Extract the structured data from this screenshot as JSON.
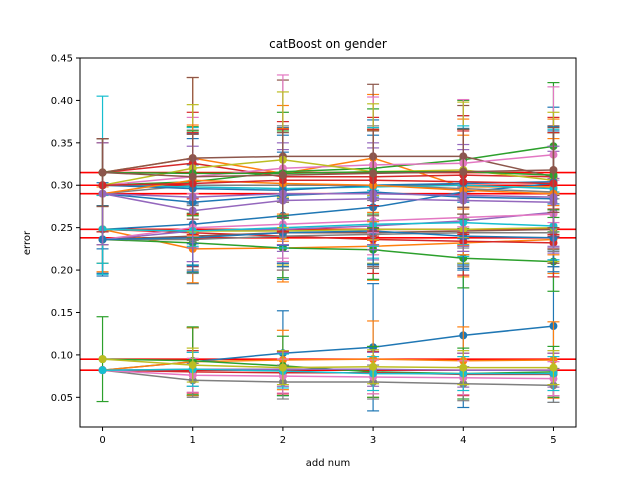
{
  "chart_data": {
    "type": "line",
    "title": "catBoost on gender",
    "xlabel": "add num",
    "ylabel": "error",
    "xlim": [
      -0.25,
      5.25
    ],
    "ylim": [
      0.015,
      0.45
    ],
    "x_ticks": [
      "0",
      "1",
      "2",
      "3",
      "4",
      "5"
    ],
    "y_ticks": [
      "0.05",
      "0.10",
      "0.15",
      "0.20",
      "0.25",
      "0.30",
      "0.35",
      "0.40",
      "0.45"
    ],
    "x": [
      0,
      1,
      2,
      3,
      4,
      5
    ],
    "grid": false,
    "reference_lines": {
      "color": "#ff0000",
      "values": [
        0.315,
        0.3,
        0.29,
        0.248,
        0.238,
        0.095,
        0.082
      ]
    },
    "series": [
      {
        "color": "#1f77b4",
        "values": [
          0.082,
          0.092,
          0.102,
          0.109,
          0.123,
          0.134
        ],
        "err": [
          0.0,
          0.04,
          0.05,
          0.075,
          0.085,
          0.09
        ]
      },
      {
        "color": "#ff7f0e",
        "values": [
          0.082,
          0.092,
          0.094,
          0.095,
          0.093,
          0.094
        ],
        "err": [
          0.0,
          0.04,
          0.035,
          0.045,
          0.04,
          0.045
        ]
      },
      {
        "color": "#2ca02c",
        "values": [
          0.095,
          0.093,
          0.087,
          0.08,
          0.078,
          0.08
        ],
        "err": [
          0.05,
          0.04,
          0.035,
          0.03,
          0.03,
          0.03
        ]
      },
      {
        "color": "#d62728",
        "values": [
          0.082,
          0.08,
          0.079,
          0.079,
          0.077,
          0.077
        ],
        "err": [
          0.0,
          0.025,
          0.025,
          0.025,
          0.025,
          0.025
        ]
      },
      {
        "color": "#9467bd",
        "values": [
          0.082,
          0.083,
          0.083,
          0.083,
          0.082,
          0.082
        ],
        "err": [
          0.0,
          0.02,
          0.02,
          0.02,
          0.02,
          0.02
        ]
      },
      {
        "color": "#7f7f7f",
        "values": [
          0.082,
          0.07,
          0.068,
          0.068,
          0.066,
          0.064
        ],
        "err": [
          0.0,
          0.02,
          0.02,
          0.02,
          0.02,
          0.02
        ]
      },
      {
        "color": "#e377c2",
        "values": [
          0.082,
          0.076,
          0.075,
          0.074,
          0.073,
          0.072
        ],
        "err": [
          0.0,
          0.02,
          0.02,
          0.02,
          0.02,
          0.02
        ]
      },
      {
        "color": "#17becf",
        "values": [
          0.082,
          0.083,
          0.081,
          0.078,
          0.078,
          0.078
        ],
        "err": [
          0.0,
          0.02,
          0.02,
          0.02,
          0.02,
          0.02
        ]
      },
      {
        "color": "#bcbd22",
        "values": [
          0.095,
          0.088,
          0.085,
          0.086,
          0.085,
          0.085
        ],
        "err": [
          0.0,
          0.02,
          0.02,
          0.02,
          0.02,
          0.02
        ]
      },
      {
        "color": "#1f77b4",
        "values": [
          0.248,
          0.254,
          0.264,
          0.274,
          0.292,
          0.302
        ],
        "err": [
          0.055,
          0.07,
          0.075,
          0.085,
          0.09,
          0.09
        ]
      },
      {
        "color": "#ff7f0e",
        "values": [
          0.248,
          0.225,
          0.226,
          0.228,
          0.232,
          0.236
        ],
        "err": [
          0.05,
          0.04,
          0.04,
          0.04,
          0.04,
          0.04
        ]
      },
      {
        "color": "#2ca02c",
        "values": [
          0.236,
          0.232,
          0.226,
          0.224,
          0.214,
          0.21
        ],
        "err": [
          0.04,
          0.035,
          0.035,
          0.035,
          0.035,
          0.035
        ]
      },
      {
        "color": "#d62728",
        "values": [
          0.248,
          0.244,
          0.24,
          0.236,
          0.234,
          0.232
        ],
        "err": [
          0.04,
          0.04,
          0.04,
          0.04,
          0.04,
          0.04
        ]
      },
      {
        "color": "#9467bd",
        "values": [
          0.236,
          0.246,
          0.248,
          0.252,
          0.258,
          0.268
        ],
        "err": [
          0.04,
          0.04,
          0.04,
          0.04,
          0.04,
          0.04
        ]
      },
      {
        "color": "#8c564b",
        "values": [
          0.236,
          0.24,
          0.244,
          0.244,
          0.246,
          0.248
        ],
        "err": [
          0.04,
          0.04,
          0.04,
          0.04,
          0.04,
          0.04
        ]
      },
      {
        "color": "#e377c2",
        "values": [
          0.236,
          0.25,
          0.254,
          0.258,
          0.262,
          0.266
        ],
        "err": [
          0.04,
          0.04,
          0.04,
          0.04,
          0.04,
          0.04
        ]
      },
      {
        "color": "#7f7f7f",
        "values": [
          0.236,
          0.236,
          0.24,
          0.242,
          0.244,
          0.244
        ],
        "err": [
          0.04,
          0.04,
          0.04,
          0.04,
          0.04,
          0.04
        ]
      },
      {
        "color": "#bcbd22",
        "values": [
          0.248,
          0.246,
          0.246,
          0.248,
          0.248,
          0.25
        ],
        "err": [
          0.04,
          0.04,
          0.04,
          0.04,
          0.04,
          0.04
        ]
      },
      {
        "color": "#17becf",
        "values": [
          0.248,
          0.246,
          0.25,
          0.254,
          0.256,
          0.252
        ],
        "err": [
          0.04,
          0.04,
          0.04,
          0.04,
          0.04,
          0.04
        ]
      },
      {
        "color": "#1f77b4",
        "values": [
          0.236,
          0.238,
          0.244,
          0.246,
          0.24,
          0.238
        ],
        "err": [
          0.04,
          0.04,
          0.04,
          0.04,
          0.04,
          0.04
        ]
      },
      {
        "color": "#1f77b4",
        "values": [
          0.29,
          0.28,
          0.288,
          0.292,
          0.286,
          0.284
        ],
        "err": [
          0.065,
          0.075,
          0.08,
          0.085,
          0.08,
          0.08
        ]
      },
      {
        "color": "#ff7f0e",
        "values": [
          0.315,
          0.332,
          0.314,
          0.332,
          0.298,
          0.298
        ],
        "err": [
          0.04,
          0.095,
          0.08,
          0.075,
          0.08,
          0.08
        ]
      },
      {
        "color": "#2ca02c",
        "values": [
          0.3,
          0.304,
          0.316,
          0.32,
          0.33,
          0.346
        ],
        "err": [
          0.055,
          0.065,
          0.07,
          0.07,
          0.07,
          0.075
        ]
      },
      {
        "color": "#d62728",
        "values": [
          0.315,
          0.326,
          0.31,
          0.31,
          0.312,
          0.31
        ],
        "err": [
          0.04,
          0.06,
          0.065,
          0.07,
          0.07,
          0.07
        ]
      },
      {
        "color": "#9467bd",
        "values": [
          0.29,
          0.27,
          0.282,
          0.284,
          0.282,
          0.28
        ],
        "err": [
          0.06,
          0.06,
          0.06,
          0.06,
          0.06,
          0.06
        ]
      },
      {
        "color": "#8c564b",
        "values": [
          0.315,
          0.332,
          0.334,
          0.334,
          0.334,
          0.31
        ],
        "err": [
          0.04,
          0.095,
          0.09,
          0.085,
          0.06,
          0.06
        ]
      },
      {
        "color": "#e377c2",
        "values": [
          0.3,
          0.31,
          0.32,
          0.324,
          0.326,
          0.336
        ],
        "err": [
          0.055,
          0.07,
          0.11,
          0.08,
          0.075,
          0.08
        ]
      },
      {
        "color": "#7f7f7f",
        "values": [
          0.29,
          0.3,
          0.3,
          0.3,
          0.296,
          0.292
        ],
        "err": [
          0.06,
          0.065,
          0.07,
          0.07,
          0.07,
          0.07
        ]
      },
      {
        "color": "#bcbd22",
        "values": [
          0.3,
          0.32,
          0.33,
          0.316,
          0.318,
          0.306
        ],
        "err": [
          0.055,
          0.075,
          0.08,
          0.08,
          0.08,
          0.08
        ]
      },
      {
        "color": "#17becf",
        "values": [
          0.3,
          0.298,
          0.296,
          0.298,
          0.3,
          0.296
        ],
        "err": [
          0.105,
          0.07,
          0.07,
          0.07,
          0.07,
          0.07
        ]
      },
      {
        "color": "#1f77b4",
        "values": [
          0.3,
          0.296,
          0.294,
          0.3,
          0.302,
          0.304
        ],
        "err": [
          0.055,
          0.065,
          0.065,
          0.065,
          0.065,
          0.065
        ]
      },
      {
        "color": "#ff7f0e",
        "values": [
          0.29,
          0.306,
          0.302,
          0.3,
          0.294,
          0.29
        ],
        "err": [
          0.06,
          0.065,
          0.065,
          0.065,
          0.065,
          0.065
        ]
      },
      {
        "color": "#2ca02c",
        "values": [
          0.315,
          0.314,
          0.314,
          0.316,
          0.316,
          0.312
        ],
        "err": [
          0.04,
          0.05,
          0.05,
          0.05,
          0.05,
          0.05
        ]
      },
      {
        "color": "#d62728",
        "values": [
          0.3,
          0.302,
          0.306,
          0.306,
          0.304,
          0.302
        ],
        "err": [
          0.055,
          0.06,
          0.06,
          0.06,
          0.06,
          0.06
        ]
      },
      {
        "color": "#9467bd",
        "values": [
          0.29,
          0.286,
          0.29,
          0.29,
          0.288,
          0.286
        ],
        "err": [
          0.06,
          0.06,
          0.06,
          0.06,
          0.06,
          0.06
        ]
      },
      {
        "color": "#8c564b",
        "values": [
          0.315,
          0.31,
          0.312,
          0.314,
          0.316,
          0.318
        ],
        "err": [
          0.04,
          0.05,
          0.05,
          0.05,
          0.05,
          0.05
        ]
      }
    ]
  }
}
